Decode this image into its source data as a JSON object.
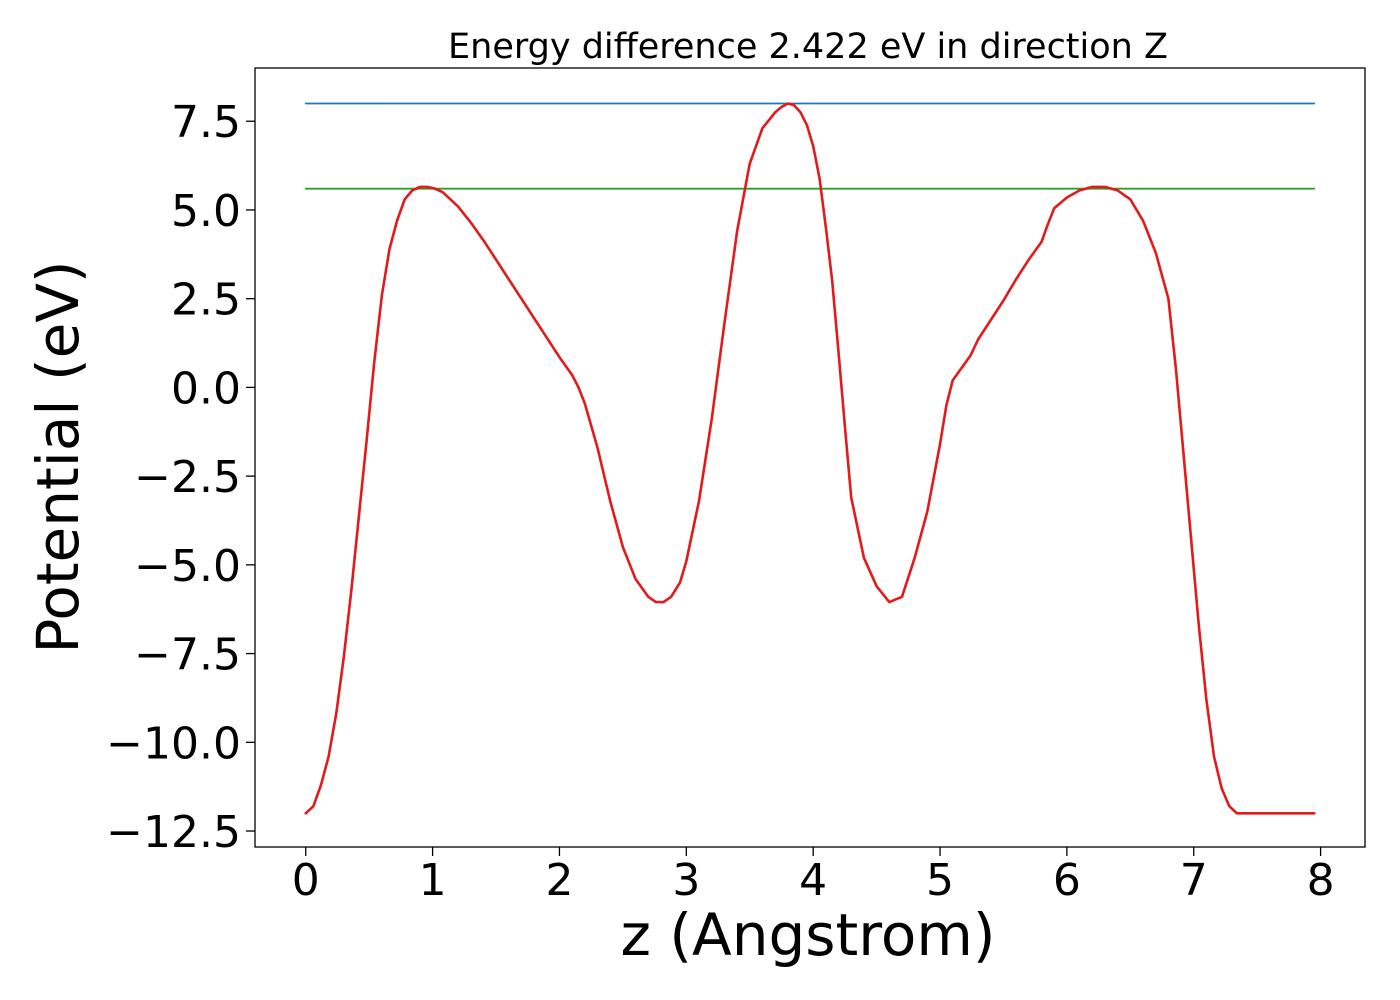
{
  "chart_data": {
    "type": "line",
    "title": "Energy difference 2.422 eV in direction Z",
    "xlabel": "z (Angstrom)",
    "ylabel": "Potential (eV)",
    "xlim": [
      -0.4,
      8.35
    ],
    "ylim": [
      -12.95,
      9.0
    ],
    "x_ticks": [
      0,
      1,
      2,
      3,
      4,
      5,
      6,
      7,
      8
    ],
    "x_tick_labels": [
      "0",
      "1",
      "2",
      "3",
      "4",
      "5",
      "6",
      "7",
      "8"
    ],
    "y_ticks": [
      7.5,
      5.0,
      2.5,
      0.0,
      -2.5,
      -5.0,
      -7.5,
      -10.0,
      -12.5
    ],
    "y_tick_labels": [
      "7.5",
      "5.0",
      "2.5",
      "0.0",
      "−2.5",
      "−5.0",
      "−7.5",
      "−10.0",
      "−12.5"
    ],
    "grid": false,
    "series": [
      {
        "color": "#1f77b4",
        "x": [
          0.0,
          7.95
        ],
        "y": [
          8.0,
          8.0
        ]
      },
      {
        "color": "#2ca02c",
        "x": [
          0.0,
          7.95
        ],
        "y": [
          5.6,
          5.6
        ]
      },
      {
        "color": "#e31a1c",
        "x": [
          0.0,
          0.06,
          0.12,
          0.18,
          0.24,
          0.3,
          0.36,
          0.42,
          0.48,
          0.54,
          0.6,
          0.66,
          0.72,
          0.78,
          0.84,
          0.9,
          0.96,
          1.02,
          1.08,
          1.14,
          1.2,
          1.3,
          1.4,
          1.5,
          1.6,
          1.7,
          1.8,
          1.9,
          2.0,
          2.1,
          2.15,
          2.2,
          2.3,
          2.4,
          2.5,
          2.6,
          2.7,
          2.76,
          2.82,
          2.88,
          2.95,
          3.0,
          3.1,
          3.2,
          3.3,
          3.4,
          3.5,
          3.6,
          3.7,
          3.75,
          3.8,
          3.85,
          3.9,
          3.95,
          4.0,
          4.05,
          4.1,
          4.15,
          4.2,
          4.25,
          4.3,
          4.4,
          4.5,
          4.6,
          4.7,
          4.8,
          4.9,
          5.0,
          5.05,
          5.1,
          5.18,
          5.24,
          5.3,
          5.4,
          5.5,
          5.6,
          5.7,
          5.8,
          5.85,
          5.9,
          6.0,
          6.1,
          6.2,
          6.3,
          6.4,
          6.5,
          6.6,
          6.7,
          6.8,
          6.86,
          6.92,
          6.98,
          7.04,
          7.1,
          7.16,
          7.22,
          7.28,
          7.34,
          7.4,
          7.46,
          7.52,
          7.58,
          7.64,
          7.7,
          7.76,
          7.82,
          7.88,
          7.95
        ],
        "y": [
          -12.0,
          -11.8,
          -11.2,
          -10.4,
          -9.2,
          -7.6,
          -5.7,
          -3.6,
          -1.5,
          0.7,
          2.6,
          3.9,
          4.7,
          5.3,
          5.55,
          5.65,
          5.65,
          5.6,
          5.5,
          5.3,
          5.1,
          4.65,
          4.15,
          3.6,
          3.05,
          2.5,
          1.95,
          1.4,
          0.85,
          0.35,
          0.0,
          -0.45,
          -1.7,
          -3.2,
          -4.5,
          -5.4,
          -5.9,
          -6.05,
          -6.05,
          -5.9,
          -5.5,
          -4.9,
          -3.2,
          -0.9,
          1.8,
          4.4,
          6.3,
          7.3,
          7.75,
          7.9,
          8.0,
          7.95,
          7.75,
          7.4,
          6.8,
          5.9,
          4.5,
          3.0,
          1.0,
          -1.1,
          -3.1,
          -4.8,
          -5.6,
          -6.05,
          -5.9,
          -4.8,
          -3.5,
          -1.6,
          -0.5,
          0.2,
          0.6,
          0.9,
          1.35,
          1.9,
          2.45,
          3.05,
          3.6,
          4.1,
          4.6,
          5.05,
          5.35,
          5.55,
          5.65,
          5.65,
          5.55,
          5.3,
          4.7,
          3.8,
          2.5,
          0.5,
          -1.9,
          -4.3,
          -6.7,
          -8.8,
          -10.4,
          -11.3,
          -11.8,
          -12.0,
          -12.0,
          -12.0,
          -12.0,
          -12.0,
          -12.0,
          -12.0,
          -12.0,
          -12.0,
          -12.0,
          -12.0
        ]
      }
    ]
  }
}
